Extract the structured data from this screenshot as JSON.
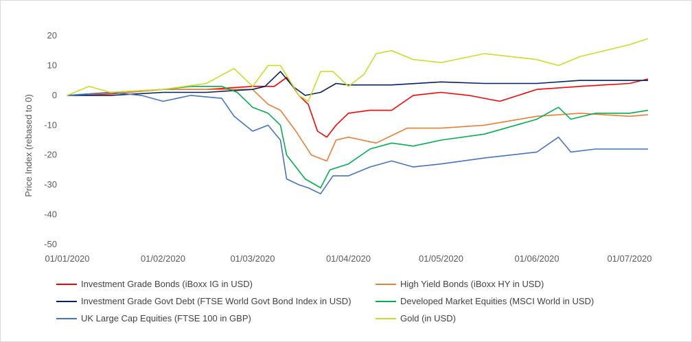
{
  "chart_data": {
    "type": "line",
    "ylabel": "Price Index (rebased to 0)",
    "ylim": [
      -50,
      20
    ],
    "yticks": [
      20,
      10,
      0,
      -10,
      -20,
      -30,
      -40,
      -50
    ],
    "xlim": [
      "01/01/2020",
      "07/07/2020"
    ],
    "xtick_labels": [
      "01/01/2020",
      "01/02/2020",
      "01/03/2020",
      "01/04/2020",
      "01/05/2020",
      "01/06/2020",
      "01/07/2020"
    ],
    "xticks": [
      "2020-01-01",
      "2020-02-01",
      "2020-03-01",
      "2020-04-01",
      "2020-05-01",
      "2020-06-01",
      "2020-07-01"
    ],
    "grid": false,
    "legend": "bottom",
    "series": [
      {
        "name": "Investment Grade Bonds (iBoxx IG in USD)",
        "color": "#ff0000",
        "points": [
          [
            "2020-01-01",
            0
          ],
          [
            "2020-01-15",
            0.5
          ],
          [
            "2020-02-01",
            2
          ],
          [
            "2020-02-15",
            2
          ],
          [
            "2020-03-01",
            3
          ],
          [
            "2020-03-08",
            3
          ],
          [
            "2020-03-12",
            6
          ],
          [
            "2020-03-16",
            0
          ],
          [
            "2020-03-19",
            -3
          ],
          [
            "2020-03-22",
            -12
          ],
          [
            "2020-03-25",
            -14
          ],
          [
            "2020-03-28",
            -10
          ],
          [
            "2020-04-01",
            -6
          ],
          [
            "2020-04-08",
            -5
          ],
          [
            "2020-04-15",
            -5
          ],
          [
            "2020-04-22",
            0
          ],
          [
            "2020-05-01",
            1
          ],
          [
            "2020-05-10",
            0
          ],
          [
            "2020-05-20",
            -2
          ],
          [
            "2020-06-01",
            2
          ],
          [
            "2020-06-15",
            3
          ],
          [
            "2020-07-01",
            4
          ],
          [
            "2020-07-07",
            5.5
          ]
        ]
      },
      {
        "name": "High Yield Bonds (iBoxx HY in USD)",
        "color": "#ed7d31",
        "points": [
          [
            "2020-01-01",
            0
          ],
          [
            "2020-01-20",
            1
          ],
          [
            "2020-02-01",
            2
          ],
          [
            "2020-02-20",
            2
          ],
          [
            "2020-03-01",
            2
          ],
          [
            "2020-03-06",
            -3
          ],
          [
            "2020-03-10",
            -5
          ],
          [
            "2020-03-15",
            -12
          ],
          [
            "2020-03-20",
            -20
          ],
          [
            "2020-03-25",
            -22
          ],
          [
            "2020-03-28",
            -15
          ],
          [
            "2020-04-01",
            -14
          ],
          [
            "2020-04-10",
            -16
          ],
          [
            "2020-04-20",
            -11
          ],
          [
            "2020-05-01",
            -11
          ],
          [
            "2020-05-15",
            -10
          ],
          [
            "2020-06-01",
            -7
          ],
          [
            "2020-06-15",
            -6
          ],
          [
            "2020-07-01",
            -7
          ],
          [
            "2020-07-07",
            -6.5
          ]
        ]
      },
      {
        "name": "Investment Grade Govt Debt (FTSE World Govt Bond Index in USD)",
        "color": "#002060",
        "points": [
          [
            "2020-01-01",
            0
          ],
          [
            "2020-01-15",
            0
          ],
          [
            "2020-02-01",
            1
          ],
          [
            "2020-02-15",
            1
          ],
          [
            "2020-03-01",
            2
          ],
          [
            "2020-03-05",
            3
          ],
          [
            "2020-03-10",
            8
          ],
          [
            "2020-03-14",
            3
          ],
          [
            "2020-03-18",
            0
          ],
          [
            "2020-03-23",
            1
          ],
          [
            "2020-03-28",
            4
          ],
          [
            "2020-04-01",
            3.5
          ],
          [
            "2020-04-15",
            3.5
          ],
          [
            "2020-05-01",
            4.5
          ],
          [
            "2020-05-15",
            4
          ],
          [
            "2020-06-01",
            4
          ],
          [
            "2020-06-15",
            5
          ],
          [
            "2020-07-01",
            5
          ],
          [
            "2020-07-07",
            5
          ]
        ]
      },
      {
        "name": "Developed Market Equities (MSCI World in USD)",
        "color": "#00b050",
        "points": [
          [
            "2020-01-01",
            0
          ],
          [
            "2020-01-15",
            1
          ],
          [
            "2020-02-01",
            2
          ],
          [
            "2020-02-10",
            3
          ],
          [
            "2020-02-20",
            3
          ],
          [
            "2020-02-25",
            1
          ],
          [
            "2020-03-01",
            -4
          ],
          [
            "2020-03-06",
            -6
          ],
          [
            "2020-03-10",
            -10
          ],
          [
            "2020-03-12",
            -20
          ],
          [
            "2020-03-15",
            -24
          ],
          [
            "2020-03-18",
            -28
          ],
          [
            "2020-03-23",
            -31
          ],
          [
            "2020-03-26",
            -25
          ],
          [
            "2020-04-01",
            -23
          ],
          [
            "2020-04-08",
            -18
          ],
          [
            "2020-04-15",
            -16
          ],
          [
            "2020-04-22",
            -17
          ],
          [
            "2020-05-01",
            -15
          ],
          [
            "2020-05-15",
            -13
          ],
          [
            "2020-06-01",
            -8
          ],
          [
            "2020-06-08",
            -4
          ],
          [
            "2020-06-12",
            -8
          ],
          [
            "2020-06-20",
            -6
          ],
          [
            "2020-07-01",
            -6
          ],
          [
            "2020-07-07",
            -5
          ]
        ]
      },
      {
        "name": "UK Large Cap Equities (FTSE 100 in GBP)",
        "color": "#4472c4",
        "points": [
          [
            "2020-01-01",
            0
          ],
          [
            "2020-01-15",
            1
          ],
          [
            "2020-01-25",
            0
          ],
          [
            "2020-02-01",
            -2
          ],
          [
            "2020-02-10",
            0
          ],
          [
            "2020-02-20",
            -1
          ],
          [
            "2020-02-24",
            -7
          ],
          [
            "2020-03-01",
            -12
          ],
          [
            "2020-03-06",
            -10
          ],
          [
            "2020-03-10",
            -15
          ],
          [
            "2020-03-12",
            -28
          ],
          [
            "2020-03-16",
            -30
          ],
          [
            "2020-03-19",
            -31
          ],
          [
            "2020-03-23",
            -33
          ],
          [
            "2020-03-27",
            -27
          ],
          [
            "2020-04-01",
            -27
          ],
          [
            "2020-04-08",
            -24
          ],
          [
            "2020-04-15",
            -22
          ],
          [
            "2020-04-22",
            -24
          ],
          [
            "2020-05-01",
            -23
          ],
          [
            "2020-05-15",
            -21
          ],
          [
            "2020-06-01",
            -19
          ],
          [
            "2020-06-08",
            -14
          ],
          [
            "2020-06-12",
            -19
          ],
          [
            "2020-06-20",
            -18
          ],
          [
            "2020-07-01",
            -18
          ],
          [
            "2020-07-07",
            -18
          ]
        ]
      },
      {
        "name": "Gold (in USD)",
        "color": "#ccdd22",
        "points": [
          [
            "2020-01-01",
            0
          ],
          [
            "2020-01-08",
            3
          ],
          [
            "2020-01-15",
            1
          ],
          [
            "2020-02-01",
            2
          ],
          [
            "2020-02-15",
            4
          ],
          [
            "2020-02-24",
            9
          ],
          [
            "2020-03-01",
            3
          ],
          [
            "2020-03-06",
            10
          ],
          [
            "2020-03-10",
            10
          ],
          [
            "2020-03-16",
            0
          ],
          [
            "2020-03-19",
            -2
          ],
          [
            "2020-03-23",
            8
          ],
          [
            "2020-03-27",
            8
          ],
          [
            "2020-04-01",
            3
          ],
          [
            "2020-04-06",
            7
          ],
          [
            "2020-04-10",
            14
          ],
          [
            "2020-04-15",
            15
          ],
          [
            "2020-04-22",
            12
          ],
          [
            "2020-05-01",
            11
          ],
          [
            "2020-05-15",
            14
          ],
          [
            "2020-06-01",
            12
          ],
          [
            "2020-06-08",
            10
          ],
          [
            "2020-06-15",
            13
          ],
          [
            "2020-07-01",
            17
          ],
          [
            "2020-07-07",
            19
          ]
        ]
      }
    ]
  }
}
